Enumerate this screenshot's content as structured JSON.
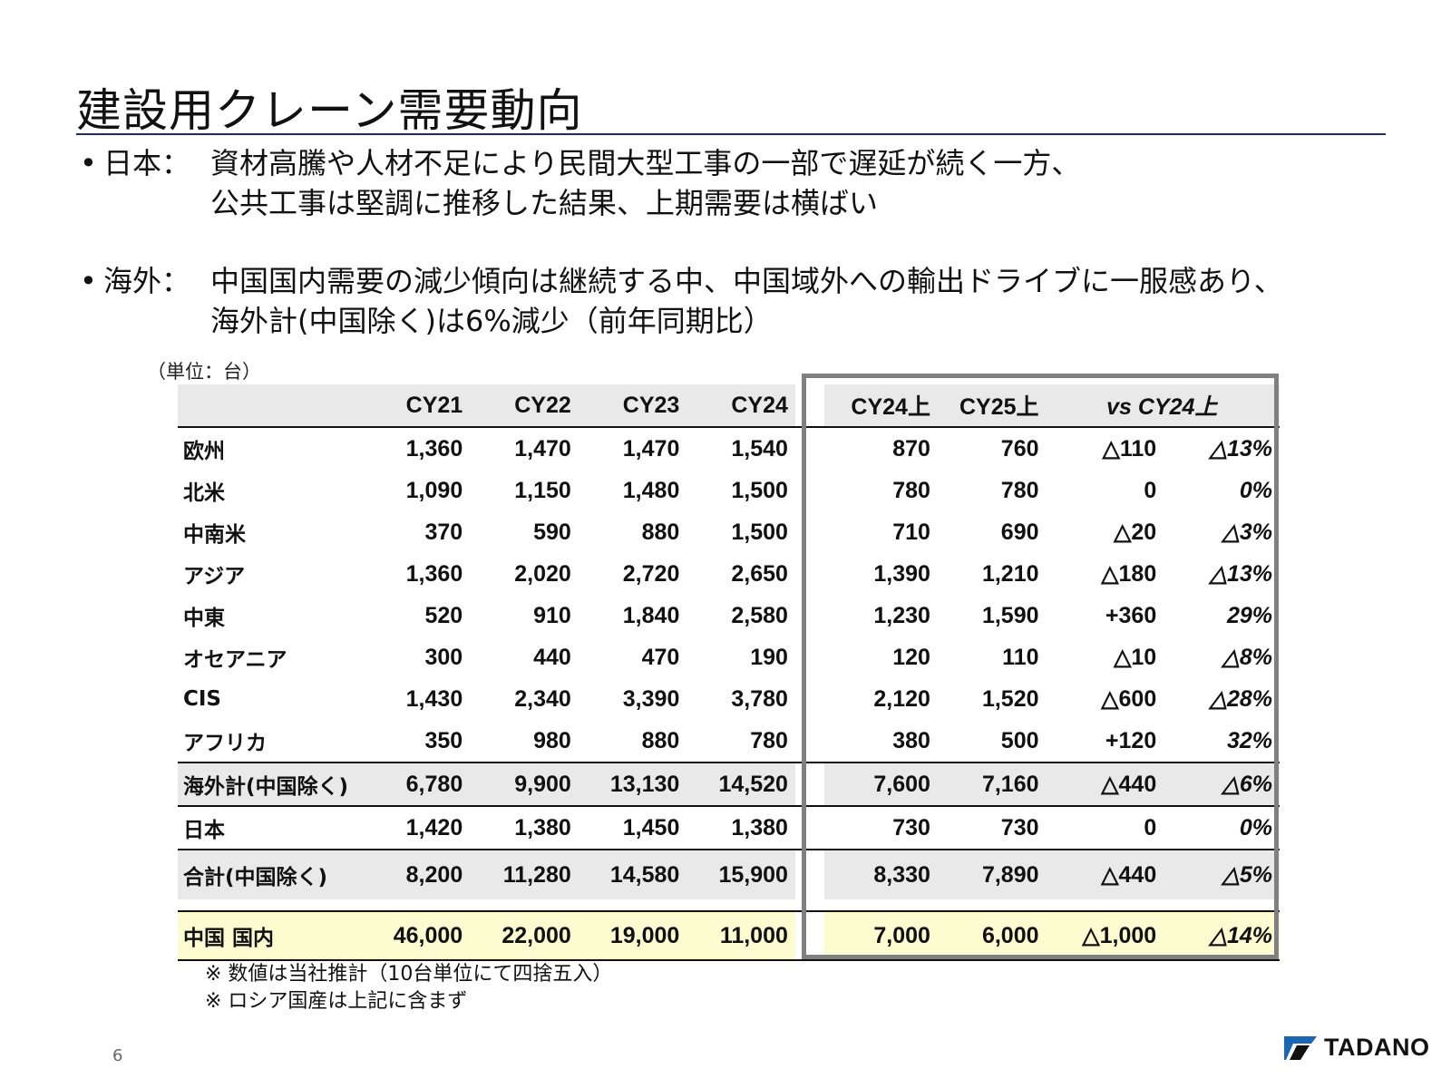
{
  "title": "建設用クレーン需要動向",
  "bullets": [
    {
      "head": "日本：",
      "line1": "資材高騰や人材不足により民間大型工事の一部で遅延が続く一方、",
      "line2": "公共工事は堅調に推移した結果、上期需要は横ばい"
    },
    {
      "head": "海外：",
      "line1": "中国国内需要の減少傾向は継続する中、中国域外への輸出ドライブに一服感あり、",
      "line2": "海外計(中国除く)は6%減少（前年同期比）"
    }
  ],
  "unit_note": "（単位：台）",
  "table": {
    "headers": [
      "",
      "CY21",
      "CY22",
      "CY23",
      "CY24",
      "CY24上",
      "CY25上",
      "vs CY24上"
    ],
    "rows": [
      [
        "欧州",
        "1,360",
        "1,470",
        "1,470",
        "1,540",
        "870",
        "760",
        "△110",
        "△13%"
      ],
      [
        "北米",
        "1,090",
        "1,150",
        "1,480",
        "1,500",
        "780",
        "780",
        "0",
        "0%"
      ],
      [
        "中南米",
        "370",
        "590",
        "880",
        "1,500",
        "710",
        "690",
        "△20",
        "△3%"
      ],
      [
        "アジア",
        "1,360",
        "2,020",
        "2,720",
        "2,650",
        "1,390",
        "1,210",
        "△180",
        "△13%"
      ],
      [
        "中東",
        "520",
        "910",
        "1,840",
        "2,580",
        "1,230",
        "1,590",
        "+360",
        "29%"
      ],
      [
        "オセアニア",
        "300",
        "440",
        "470",
        "190",
        "120",
        "110",
        "△10",
        "△8%"
      ],
      [
        "CIS",
        "1,430",
        "2,340",
        "3,390",
        "3,780",
        "2,120",
        "1,520",
        "△600",
        "△28%"
      ],
      [
        "アフリカ",
        "350",
        "980",
        "880",
        "780",
        "380",
        "500",
        "+120",
        "32%"
      ],
      [
        "海外計(中国除く)",
        "6,780",
        "9,900",
        "13,130",
        "14,520",
        "7,600",
        "7,160",
        "△440",
        "△6%"
      ],
      [
        "日本",
        "1,420",
        "1,380",
        "1,450",
        "1,380",
        "730",
        "730",
        "0",
        "0%"
      ],
      [
        "合計(中国除く)",
        "8,200",
        "11,280",
        "14,580",
        "15,900",
        "8,330",
        "7,890",
        "△440",
        "△5%"
      ],
      [
        "中国 国内",
        "46,000",
        "22,000",
        "19,000",
        "11,000",
        "7,000",
        "6,000",
        "△1,000",
        "△14%"
      ]
    ]
  },
  "notes": [
    "※ 数値は当社推計（10台単位にて四捨五入）",
    "※ ロシア国産は上記に含まず"
  ],
  "page_number": "6",
  "logo_text": "TADANO",
  "colors": {
    "rule": "#1f2a6b",
    "header_bg": "#e9e9e9",
    "china_bg": "#fdfbd0",
    "box": "#808080"
  }
}
